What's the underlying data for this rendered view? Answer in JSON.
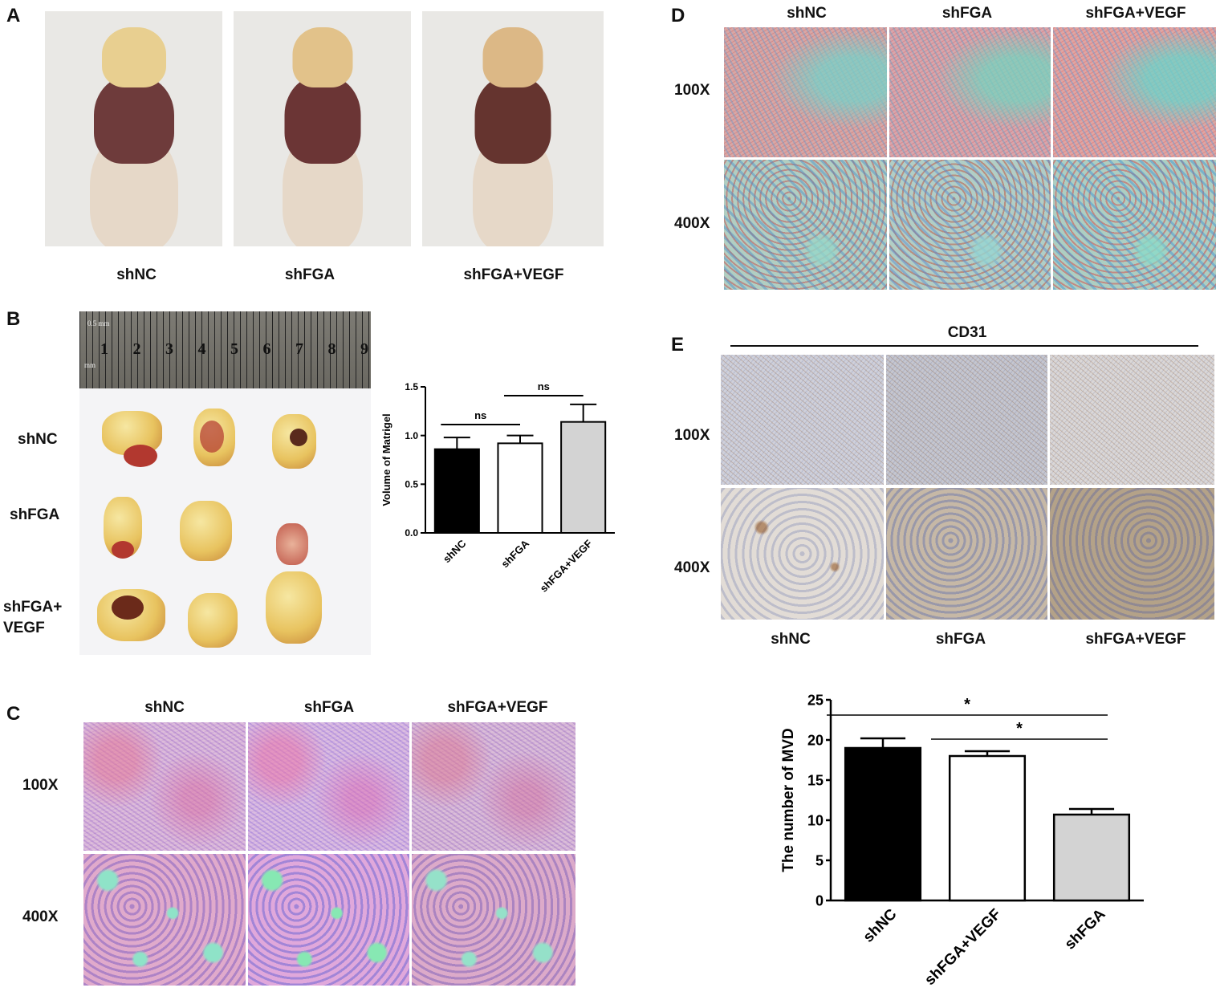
{
  "panels": {
    "A": {
      "letter": "A",
      "groups": [
        "shNC",
        "shFGA",
        "shFGA+VEGF"
      ]
    },
    "B": {
      "letter": "B",
      "ruler_numbers": [
        "1",
        "2",
        "3",
        "4",
        "5",
        "6",
        "7",
        "8",
        "9"
      ],
      "ruler_small": "0.5 mm",
      "ruler_unit": "mm",
      "row_labels": [
        "shNC",
        "shFGA",
        "shFGA+",
        "VEGF"
      ]
    },
    "C": {
      "letter": "C",
      "groups": [
        "shNC",
        "shFGA",
        "shFGA+VEGF"
      ],
      "magnifications": [
        "100X",
        "400X"
      ]
    },
    "D": {
      "letter": "D",
      "groups": [
        "shNC",
        "shFGA",
        "shFGA+VEGF"
      ],
      "magnifications": [
        "100X",
        "400X"
      ]
    },
    "E": {
      "letter": "E",
      "stain": "CD31",
      "groups": [
        "shNC",
        "shFGA",
        "shFGA+VEGF"
      ],
      "magnifications": [
        "100X",
        "400X"
      ]
    }
  },
  "chart_data": [
    {
      "type": "bar",
      "panel": "B",
      "categories": [
        "shNC",
        "shFGA",
        "shFGA+VEGF"
      ],
      "values": [
        0.86,
        0.92,
        1.14
      ],
      "errors": [
        0.12,
        0.08,
        0.18
      ],
      "colors": [
        "#000000",
        "#ffffff",
        "#d3d3d3"
      ],
      "ylabel": "Volume of Matrigel",
      "ylim": [
        0,
        1.5
      ],
      "yticks": [
        "0.0",
        "0.5",
        "1.0",
        "1.5"
      ],
      "significance": [
        {
          "from": 0,
          "to": 1,
          "label": "ns"
        },
        {
          "from": 1,
          "to": 2,
          "label": "ns"
        }
      ]
    },
    {
      "type": "bar",
      "panel": "E",
      "categories": [
        "shNC",
        "shFGA+VEGF",
        "shFGA"
      ],
      "values": [
        19,
        18,
        10.7
      ],
      "errors": [
        1.2,
        0.6,
        0.7
      ],
      "colors": [
        "#000000",
        "#ffffff",
        "#d3d3d3"
      ],
      "ylabel": "The number of MVD",
      "ylim": [
        0,
        25
      ],
      "yticks": [
        "0",
        "5",
        "10",
        "15",
        "20",
        "25"
      ],
      "significance": [
        {
          "from": 0,
          "to": 2,
          "label": "*"
        },
        {
          "from": 1,
          "to": 2,
          "label": "*"
        }
      ]
    }
  ]
}
